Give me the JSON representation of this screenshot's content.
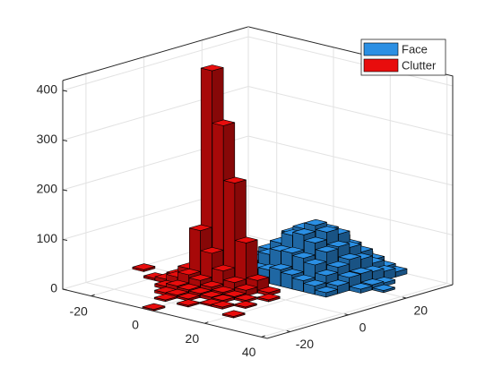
{
  "chart_data": {
    "type": "hist3d",
    "xlim": [
      -30,
      42
    ],
    "xticks": [
      -20,
      0,
      20,
      40
    ],
    "ylim": [
      -28,
      36
    ],
    "yticks": [
      -20,
      0,
      20
    ],
    "zlim": [
      0,
      420
    ],
    "zticks": [
      0,
      100,
      200,
      300,
      400
    ],
    "grid": true,
    "legend_position": "northeast",
    "series": [
      {
        "name": "Face",
        "color": "#2b8fe3",
        "x": [
          -8,
          -4,
          0,
          4,
          8,
          12,
          16,
          20,
          24,
          -8,
          -4,
          0,
          4,
          8,
          12,
          16,
          20,
          24,
          -8,
          -4,
          0,
          4,
          8,
          12,
          16,
          20,
          24,
          -8,
          -4,
          0,
          4,
          8,
          12,
          16,
          20,
          24,
          -8,
          -4,
          0,
          4,
          8,
          12,
          16,
          20,
          24,
          -8,
          -4,
          0,
          4,
          8,
          12,
          16,
          20,
          24,
          -8,
          -4,
          0,
          4,
          8,
          12,
          16,
          20,
          24,
          28,
          28,
          28,
          32
        ],
        "y": [
          10,
          10,
          10,
          10,
          10,
          10,
          10,
          10,
          10,
          14,
          14,
          14,
          14,
          14,
          14,
          14,
          14,
          14,
          18,
          18,
          18,
          18,
          18,
          18,
          18,
          18,
          18,
          22,
          22,
          22,
          22,
          22,
          22,
          22,
          22,
          22,
          26,
          26,
          26,
          26,
          26,
          26,
          26,
          26,
          26,
          30,
          30,
          30,
          30,
          30,
          30,
          30,
          30,
          30,
          34,
          34,
          34,
          34,
          34,
          34,
          34,
          34,
          34,
          18,
          22,
          26,
          22
        ],
        "values": [
          8,
          15,
          24,
          27,
          33,
          28,
          22,
          17,
          9,
          18,
          29,
          46,
          58,
          60,
          55,
          47,
          31,
          16,
          24,
          44,
          62,
          83,
          90,
          79,
          66,
          41,
          26,
          29,
          48,
          75,
          90,
          102,
          94,
          70,
          50,
          27,
          23,
          45,
          63,
          80,
          86,
          83,
          62,
          44,
          24,
          18,
          31,
          43,
          57,
          63,
          54,
          46,
          29,
          18,
          8,
          17,
          22,
          30,
          31,
          28,
          24,
          15,
          10,
          8,
          10,
          7,
          4
        ]
      },
      {
        "name": "Clutter",
        "color": "#e80d0d",
        "x": [
          -8,
          -4,
          0,
          4,
          -12,
          -16,
          8,
          12,
          -8,
          -4,
          0,
          -12,
          4,
          -16,
          8,
          16,
          -8,
          -4,
          0,
          4,
          -12,
          -16,
          -12,
          -8,
          -4,
          0,
          4,
          8,
          12,
          -20,
          -12,
          -8,
          -4,
          0,
          4,
          8,
          16,
          -8,
          -4,
          0,
          8,
          12,
          -4,
          4,
          20,
          -28,
          0
        ],
        "y": [
          2,
          2,
          2,
          2,
          2,
          2,
          2,
          2,
          -2,
          -2,
          -2,
          -2,
          -2,
          -2,
          -2,
          -2,
          6,
          6,
          6,
          6,
          6,
          -6,
          -6,
          -6,
          -6,
          -6,
          -6,
          -6,
          -6,
          -6,
          -10,
          -10,
          -10,
          -10,
          -10,
          -10,
          -10,
          -14,
          -14,
          -14,
          -14,
          -14,
          -18,
          -18,
          -18,
          -2,
          -26
        ],
        "values": [
          425,
          320,
          210,
          95,
          55,
          12,
          25,
          6,
          110,
          70,
          40,
          28,
          22,
          10,
          12,
          4,
          18,
          25,
          14,
          9,
          6,
          8,
          18,
          28,
          22,
          14,
          9,
          6,
          4,
          4,
          6,
          12,
          10,
          8,
          6,
          5,
          3,
          5,
          6,
          4,
          3,
          4,
          3,
          3,
          3,
          4,
          3
        ]
      }
    ]
  }
}
